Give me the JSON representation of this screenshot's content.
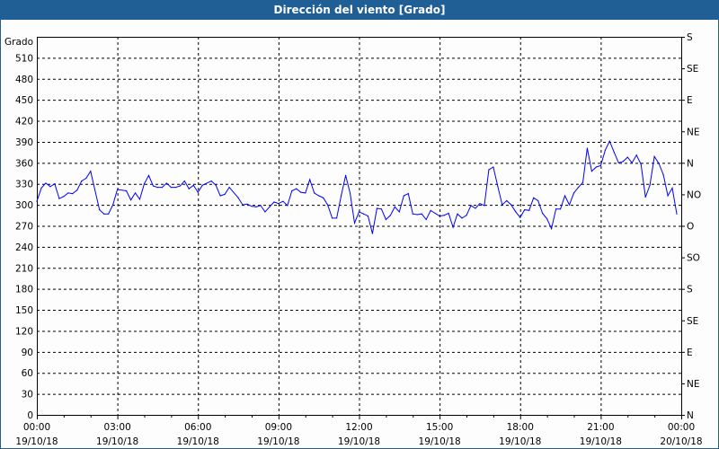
{
  "chart_data": {
    "type": "line",
    "title": "Dirección del viento [Grado]",
    "ylabel": "Grado",
    "xlabel": "",
    "ylim": [
      0,
      540
    ],
    "xlim": [
      "19/10/18 00:00",
      "20/10/18 00:00"
    ],
    "grid": true,
    "y_ticks": [
      0,
      30,
      60,
      90,
      120,
      150,
      180,
      210,
      240,
      270,
      300,
      330,
      360,
      390,
      420,
      450,
      480,
      510
    ],
    "x_ticks": [
      {
        "time": "00:00",
        "date": "19/10/18"
      },
      {
        "time": "03:00",
        "date": "19/10/18"
      },
      {
        "time": "06:00",
        "date": "19/10/18"
      },
      {
        "time": "09:00",
        "date": "19/10/18"
      },
      {
        "time": "12:00",
        "date": "19/10/18"
      },
      {
        "time": "15:00",
        "date": "19/10/18"
      },
      {
        "time": "18:00",
        "date": "19/10/18"
      },
      {
        "time": "21:00",
        "date": "19/10/18"
      },
      {
        "time": "00:00",
        "date": "20/10/18"
      }
    ],
    "right_axis": [
      {
        "value": 0,
        "label": "N"
      },
      {
        "value": 45,
        "label": "NE"
      },
      {
        "value": 90,
        "label": "E"
      },
      {
        "value": 135,
        "label": "SE"
      },
      {
        "value": 180,
        "label": "S"
      },
      {
        "value": 225,
        "label": "SO"
      },
      {
        "value": 270,
        "label": "O"
      },
      {
        "value": 315,
        "label": "NO"
      },
      {
        "value": 360,
        "label": "N"
      },
      {
        "value": 405,
        "label": "NE"
      },
      {
        "value": 450,
        "label": "E"
      },
      {
        "value": 495,
        "label": "SE"
      },
      {
        "value": 540,
        "label": "S"
      }
    ],
    "series": [
      {
        "color": "#0000ff",
        "x": [
          "00:00",
          "00:10",
          "00:20",
          "00:30",
          "00:40",
          "00:50",
          "01:00",
          "01:10",
          "01:20",
          "01:30",
          "01:40",
          "01:50",
          "02:00",
          "02:20",
          "02:30",
          "02:40",
          "02:50",
          "03:00",
          "03:20",
          "03:30",
          "03:40",
          "03:50",
          "04:00",
          "04:10",
          "04:20",
          "04:30",
          "04:40",
          "04:50",
          "05:00",
          "05:10",
          "05:20",
          "05:30",
          "05:40",
          "05:50",
          "06:00",
          "06:10",
          "06:30",
          "06:40",
          "06:50",
          "07:00",
          "07:10",
          "07:30",
          "07:40",
          "07:50",
          "08:00",
          "08:10",
          "08:20",
          "08:30",
          "08:40",
          "08:50",
          "09:00",
          "09:10",
          "09:20",
          "09:30",
          "09:40",
          "09:50",
          "10:00",
          "10:10",
          "10:20",
          "10:30",
          "10:40",
          "10:50",
          "11:00",
          "11:10",
          "11:20",
          "11:30",
          "11:40",
          "11:50",
          "12:00",
          "12:10",
          "12:20",
          "12:30",
          "12:40",
          "12:50",
          "13:00",
          "13:10",
          "13:20",
          "13:30",
          "13:40",
          "13:50",
          "14:00",
          "14:10",
          "14:20",
          "14:30",
          "14:40",
          "14:50",
          "15:00",
          "15:10",
          "15:20",
          "15:30",
          "15:40",
          "15:50",
          "16:00",
          "16:10",
          "16:20",
          "16:30",
          "16:40",
          "16:50",
          "17:00",
          "17:10",
          "17:20",
          "17:30",
          "17:40",
          "17:50",
          "18:00",
          "18:10",
          "18:20",
          "18:30",
          "18:40",
          "18:50",
          "19:00",
          "19:10",
          "19:20",
          "19:30",
          "19:40",
          "19:50",
          "20:00",
          "20:10",
          "20:20",
          "20:30",
          "20:40",
          "20:50",
          "21:00",
          "21:10",
          "21:20",
          "21:30",
          "21:40",
          "21:50",
          "22:00",
          "22:10",
          "22:20",
          "22:30",
          "22:40",
          "22:50",
          "23:00",
          "23:10",
          "23:20",
          "23:30",
          "23:40",
          "23:50"
        ],
        "values": [
          305,
          324,
          331,
          326,
          330,
          309,
          312,
          317,
          316,
          321,
          334,
          338,
          348,
          293,
          287,
          287,
          300,
          322,
          320,
          307,
          317,
          308,
          330,
          342,
          327,
          325,
          325,
          331,
          325,
          325,
          327,
          334,
          323,
          328,
          318,
          328,
          334,
          328,
          313,
          315,
          325,
          310,
          300,
          301,
          298,
          297,
          299,
          290,
          297,
          304,
          302,
          305,
          299,
          320,
          323,
          318,
          317,
          336,
          317,
          313,
          310,
          300,
          281,
          281,
          313,
          342,
          317,
          274,
          290,
          287,
          284,
          259,
          295,
          294,
          279,
          285,
          297,
          290,
          313,
          316,
          287,
          286,
          287,
          279,
          292,
          288,
          284,
          285,
          288,
          268,
          287,
          281,
          285,
          299,
          295,
          302,
          299,
          350,
          354,
          326,
          300,
          306,
          300,
          290,
          282,
          293,
          292,
          310,
          306,
          288,
          280,
          266,
          294,
          294,
          313,
          300,
          317,
          325,
          332,
          381,
          348,
          354,
          356,
          378,
          391,
          375,
          360,
          362,
          368,
          360,
          371,
          358,
          311,
          328,
          369,
          359,
          343,
          313,
          324,
          287
        ]
      }
    ]
  }
}
